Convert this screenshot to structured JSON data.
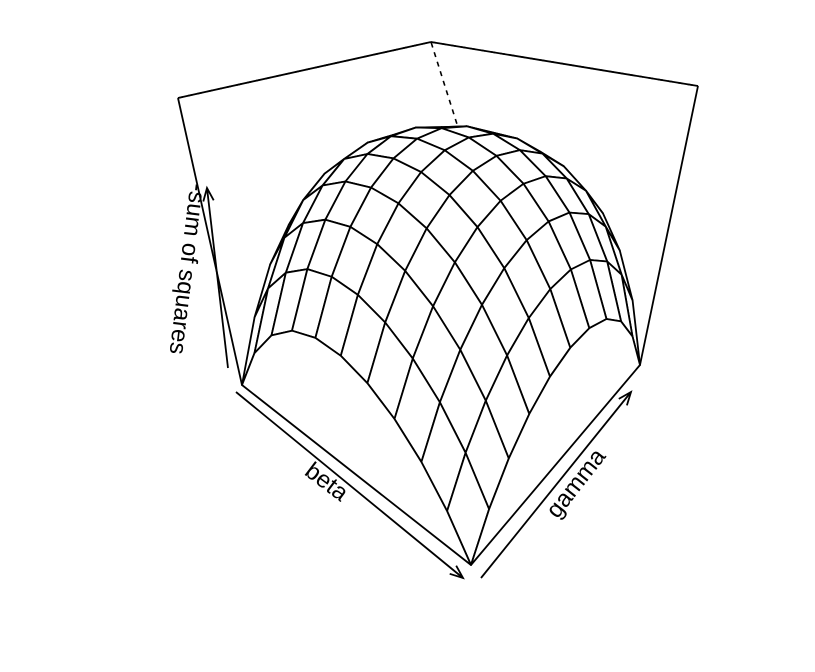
{
  "chart_data": {
    "type": "surface",
    "projection": "perspective",
    "title": "",
    "xlabel": "beta",
    "ylabel": "gamma",
    "zlabel": "-sum of squares",
    "x_grid": [
      0.0,
      0.1,
      0.2,
      0.3,
      0.4,
      0.5,
      0.6,
      0.7,
      0.8,
      0.9,
      1.0
    ],
    "y_grid": [
      0.0,
      0.1,
      0.2,
      0.3,
      0.4,
      0.5,
      0.6,
      0.7,
      0.8,
      0.9,
      1.0
    ],
    "surface": "z = 1 - (2x-1)^2 - (2y-1)^2 (shape of a dome, peaking at centre)",
    "z_values": [
      [
        -1.0,
        -0.64,
        -0.36,
        -0.16,
        -0.04,
        0.0,
        -0.04,
        -0.16,
        -0.36,
        -0.64,
        -1.0
      ],
      [
        -0.64,
        -0.28,
        0.0,
        0.2,
        0.32,
        0.36,
        0.32,
        0.2,
        0.0,
        -0.28,
        -0.64
      ],
      [
        -0.36,
        0.0,
        0.28,
        0.48,
        0.6,
        0.64,
        0.6,
        0.48,
        0.28,
        0.0,
        -0.36
      ],
      [
        -0.16,
        0.2,
        0.48,
        0.68,
        0.8,
        0.84,
        0.8,
        0.68,
        0.48,
        0.2,
        -0.16
      ],
      [
        -0.04,
        0.32,
        0.6,
        0.8,
        0.92,
        0.96,
        0.92,
        0.8,
        0.6,
        0.32,
        -0.04
      ],
      [
        0.0,
        0.36,
        0.64,
        0.84,
        0.96,
        1.0,
        0.96,
        0.84,
        0.64,
        0.36,
        0.0
      ],
      [
        -0.04,
        0.32,
        0.6,
        0.8,
        0.92,
        0.96,
        0.92,
        0.8,
        0.6,
        0.32,
        -0.04
      ],
      [
        -0.16,
        0.2,
        0.48,
        0.68,
        0.8,
        0.84,
        0.8,
        0.68,
        0.48,
        0.2,
        -0.16
      ],
      [
        -0.36,
        0.0,
        0.28,
        0.48,
        0.6,
        0.64,
        0.6,
        0.48,
        0.28,
        0.0,
        -0.36
      ],
      [
        -0.64,
        -0.28,
        0.0,
        0.2,
        0.32,
        0.36,
        0.32,
        0.2,
        0.0,
        -0.28,
        -0.64
      ],
      [
        -1.0,
        -0.64,
        -0.36,
        -0.16,
        -0.04,
        0.0,
        -0.04,
        -0.16,
        -0.36,
        -0.64,
        -1.0
      ]
    ],
    "zlim": [
      -1.0,
      1.0
    ],
    "ticks": "none",
    "colors": {
      "surface_fill": "#ffffff",
      "lines": "#000000"
    }
  }
}
